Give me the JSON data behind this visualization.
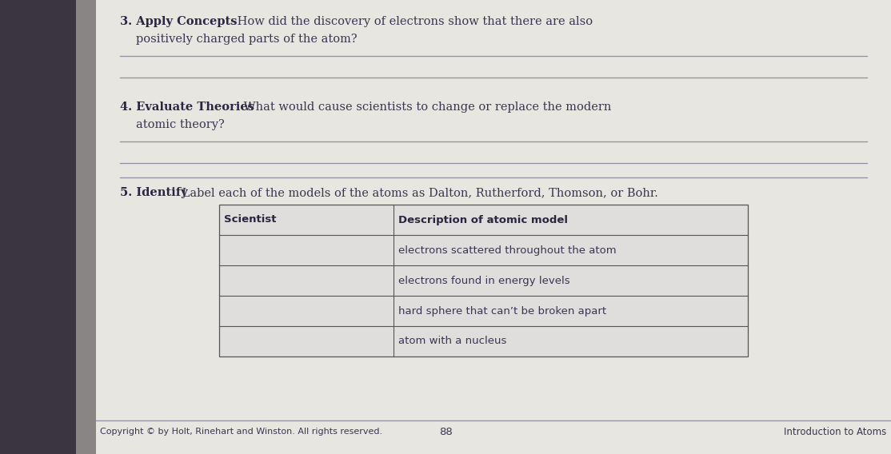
{
  "bg_left_color": "#3a3540",
  "bg_main_color": "#c8c5c0",
  "page_color": "#e8e6e1",
  "text_color": "#3a3650",
  "bold_color": "#2a2640",
  "line_color": "#9090a0",
  "table_bg": "#e0dedd",
  "q3_bold": "3. Apply Concepts",
  "q3_rest_line1": " How did the discovery of electrons show that there are also",
  "q3_rest_line2": "positively charged parts of the atom?",
  "q4_bold": "4. Evaluate Theories",
  "q4_rest_line1": " What would cause scientists to change or replace the modern",
  "q4_rest_line2": "atomic theory?",
  "q5_bold": "5. Identify",
  "q5_rest": " Label each of the models of the atoms as Dalton, Rutherford, Thomson, or Bohr.",
  "table_header_col1": "Scientist",
  "table_header_col2": "Description of atomic model",
  "table_rows": [
    [
      "",
      "electrons scattered throughout the atom"
    ],
    [
      "",
      "electrons found in energy levels"
    ],
    [
      "",
      "hard sphere that can’t be broken apart"
    ],
    [
      "",
      "atom with a nucleus"
    ]
  ],
  "footer_left": "Copyright © by Holt, Rinehart and Winston. All rights reserved.",
  "footer_center": "88",
  "footer_right": "Introduction to Atoms"
}
